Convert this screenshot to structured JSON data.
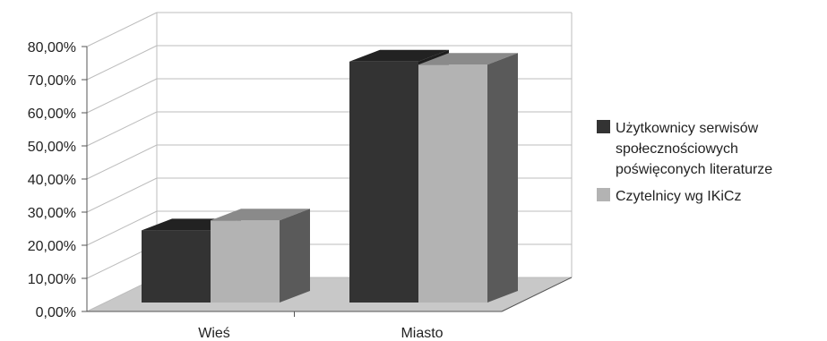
{
  "chart_data": {
    "type": "bar",
    "categories": [
      "Wieś",
      "Miasto"
    ],
    "series": [
      {
        "name": "Użytkownicy serwisów społecznościowych poświęconych literaturze",
        "legend_lines": [
          "Użytkownicy serwisów",
          "społecznościowych",
          "poświęconych literaturze"
        ],
        "values": [
          24.5,
          75.5
        ],
        "color_front": "#333333",
        "color_top": "#222222",
        "color_side": "#1e1e1e"
      },
      {
        "name": "Czytelnicy wg IKiCz",
        "legend_lines": [
          "Czytelnicy wg IKiCz"
        ],
        "values": [
          27.5,
          74.5
        ],
        "color_front": "#b3b3b3",
        "color_top": "#8a8a8a",
        "color_side": "#5a5a5a"
      }
    ],
    "ylim": [
      0,
      80
    ],
    "ytick_step": 10,
    "y_tick_labels": [
      "0,00%",
      "10,00%",
      "20,00%",
      "30,00%",
      "40,00%",
      "50,00%",
      "60,00%",
      "70,00%",
      "80,00%"
    ],
    "style": "3d",
    "grid": true,
    "legend_position": "right"
  }
}
